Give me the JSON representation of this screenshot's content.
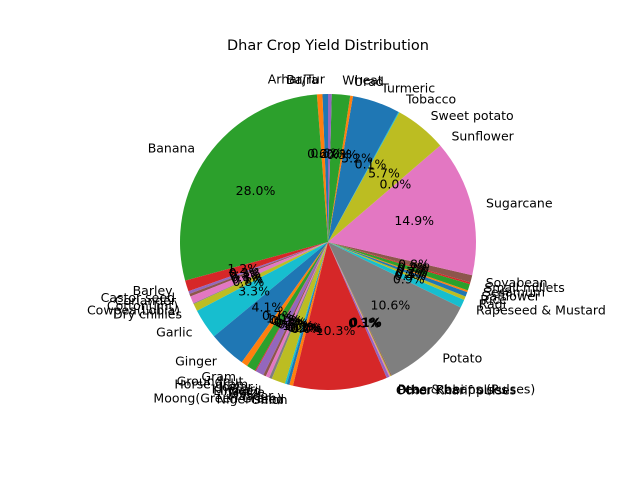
{
  "chart_data": {
    "type": "pie",
    "title": "Dhar Crop Yield Distribution",
    "start_angle_deg": 90,
    "direction": "counterclockwise",
    "slices": [
      {
        "label": "Arhar/Tur",
        "value": 0.6,
        "pct": "0.6%",
        "color": "#1f77b4"
      },
      {
        "label": "Bajra",
        "value": 0.6,
        "pct": "0.6%",
        "color": "#ff7f0e"
      },
      {
        "label": "Banana",
        "value": 28.0,
        "pct": "28.0%",
        "color": "#2ca02c"
      },
      {
        "label": "Barley",
        "value": 1.2,
        "pct": "1.2%",
        "color": "#d62728"
      },
      {
        "label": "Castor seed",
        "value": 0.3,
        "pct": "0.3%",
        "color": "#9467bd"
      },
      {
        "label": "Coriander",
        "value": 0.3,
        "pct": "0.3%",
        "color": "#8c564b"
      },
      {
        "label": "Cotton(lint)",
        "value": 0.8,
        "pct": "0.8%",
        "color": "#e377c2"
      },
      {
        "label": "Cowpea(Lobia)",
        "value": 0.1,
        "pct": "0.1%",
        "color": "#7f7f7f"
      },
      {
        "label": "Dry chillies",
        "value": 0.8,
        "pct": "0.8%",
        "color": "#bcbd22"
      },
      {
        "label": "Garlic",
        "value": 3.3,
        "pct": "3.3%",
        "color": "#17becf"
      },
      {
        "label": "Ginger",
        "value": 4.1,
        "pct": "4.1%",
        "color": "#1f77b4"
      },
      {
        "label": "Gram",
        "value": 0.7,
        "pct": "0.7%",
        "color": "#ff7f0e"
      },
      {
        "label": "Groundnut",
        "value": 1.0,
        "pct": "1.0%",
        "color": "#2ca02c"
      },
      {
        "label": "Horse-gram",
        "value": 0.1,
        "pct": "0.1%",
        "color": "#d62728"
      },
      {
        "label": "Jowar",
        "value": 0.9,
        "pct": "0.9%",
        "color": "#9467bd"
      },
      {
        "label": "Khesari",
        "value": 0.3,
        "pct": "0.3%",
        "color": "#8c564b"
      },
      {
        "label": "Linseed",
        "value": 0.4,
        "pct": "0.4%",
        "color": "#e377c2"
      },
      {
        "label": "Maize",
        "value": 0.3,
        "pct": "0.3%",
        "color": "#7f7f7f"
      },
      {
        "label": "Masoor",
        "value": 1.5,
        "pct": "1.5%",
        "color": "#bcbd22"
      },
      {
        "label": "Moong(Green Gram)",
        "value": 0.2,
        "pct": "0.2%",
        "color": "#17becf"
      },
      {
        "label": "Niger seed",
        "value": 0.3,
        "pct": "0.3%",
        "color": "#1f77b4"
      },
      {
        "label": "Onion",
        "value": 0.4,
        "pct": "0.4%",
        "color": "#ff7f0e"
      },
      {
        "label": "",
        "value": 0.0,
        "pct": "0.0%",
        "color": "#2ca02c"
      },
      {
        "label": "",
        "value": 10.3,
        "pct": "10.3%",
        "color": "#d62728"
      },
      {
        "label": "",
        "value": 0.3,
        "pct": "0.3%",
        "color": "#9467bd"
      },
      {
        "label": "Other Kharif pulses",
        "value": 0.1,
        "pct": "0.1%",
        "color": "#e377c2"
      },
      {
        "label": "Other Rabi pulses",
        "value": 0.1,
        "pct": "0.1%",
        "color": "#bcbd22"
      },
      {
        "label": "Peas & beans (Pulses)",
        "value": 0.1,
        "pct": "0.1%",
        "color": "#8c564b"
      },
      {
        "label": "Potato",
        "value": 10.6,
        "pct": "10.6%",
        "color": "#7f7f7f"
      },
      {
        "label": "Rapeseed & Mustard",
        "value": 0.9,
        "pct": "0.9%",
        "color": "#17becf"
      },
      {
        "label": "Ragi",
        "value": 0.4,
        "pct": "0.4%",
        "color": "#bcbd22"
      },
      {
        "label": "Rice",
        "value": 0.5,
        "pct": "0.5%",
        "color": "#1f77b4"
      },
      {
        "label": "Safflower",
        "value": 0.2,
        "pct": "0.2%",
        "color": "#ff7f0e"
      },
      {
        "label": "Sesamum",
        "value": 0.7,
        "pct": "0.7%",
        "color": "#2ca02c"
      },
      {
        "label": "Small millets",
        "value": 0.2,
        "pct": "0.2%",
        "color": "#d62728"
      },
      {
        "label": "Soyabean",
        "value": 0.8,
        "pct": "0.8%",
        "color": "#8c564b"
      },
      {
        "label": "Sugarcane",
        "value": 14.9,
        "pct": "14.9%",
        "color": "#e377c2"
      },
      {
        "label": "Sunflower",
        "value": 0.0,
        "pct": "0.0%",
        "color": "#7f7f7f"
      },
      {
        "label": "Sweet potato",
        "value": 5.7,
        "pct": "5.7%",
        "color": "#bcbd22"
      },
      {
        "label": "Tobacco",
        "value": 0.1,
        "pct": "0.1%",
        "color": "#17becf"
      },
      {
        "label": "Turmeric",
        "value": 5.2,
        "pct": "5.2%",
        "color": "#1f77b4"
      },
      {
        "label": "Urad",
        "value": 0.3,
        "pct": "0.3%",
        "color": "#ff7f0e"
      },
      {
        "label": "Wheat",
        "value": 2.0,
        "pct": "2.0%",
        "color": "#2ca02c"
      },
      {
        "label": "",
        "value": 0.4,
        "pct": "",
        "color": "#9467bd"
      }
    ]
  }
}
